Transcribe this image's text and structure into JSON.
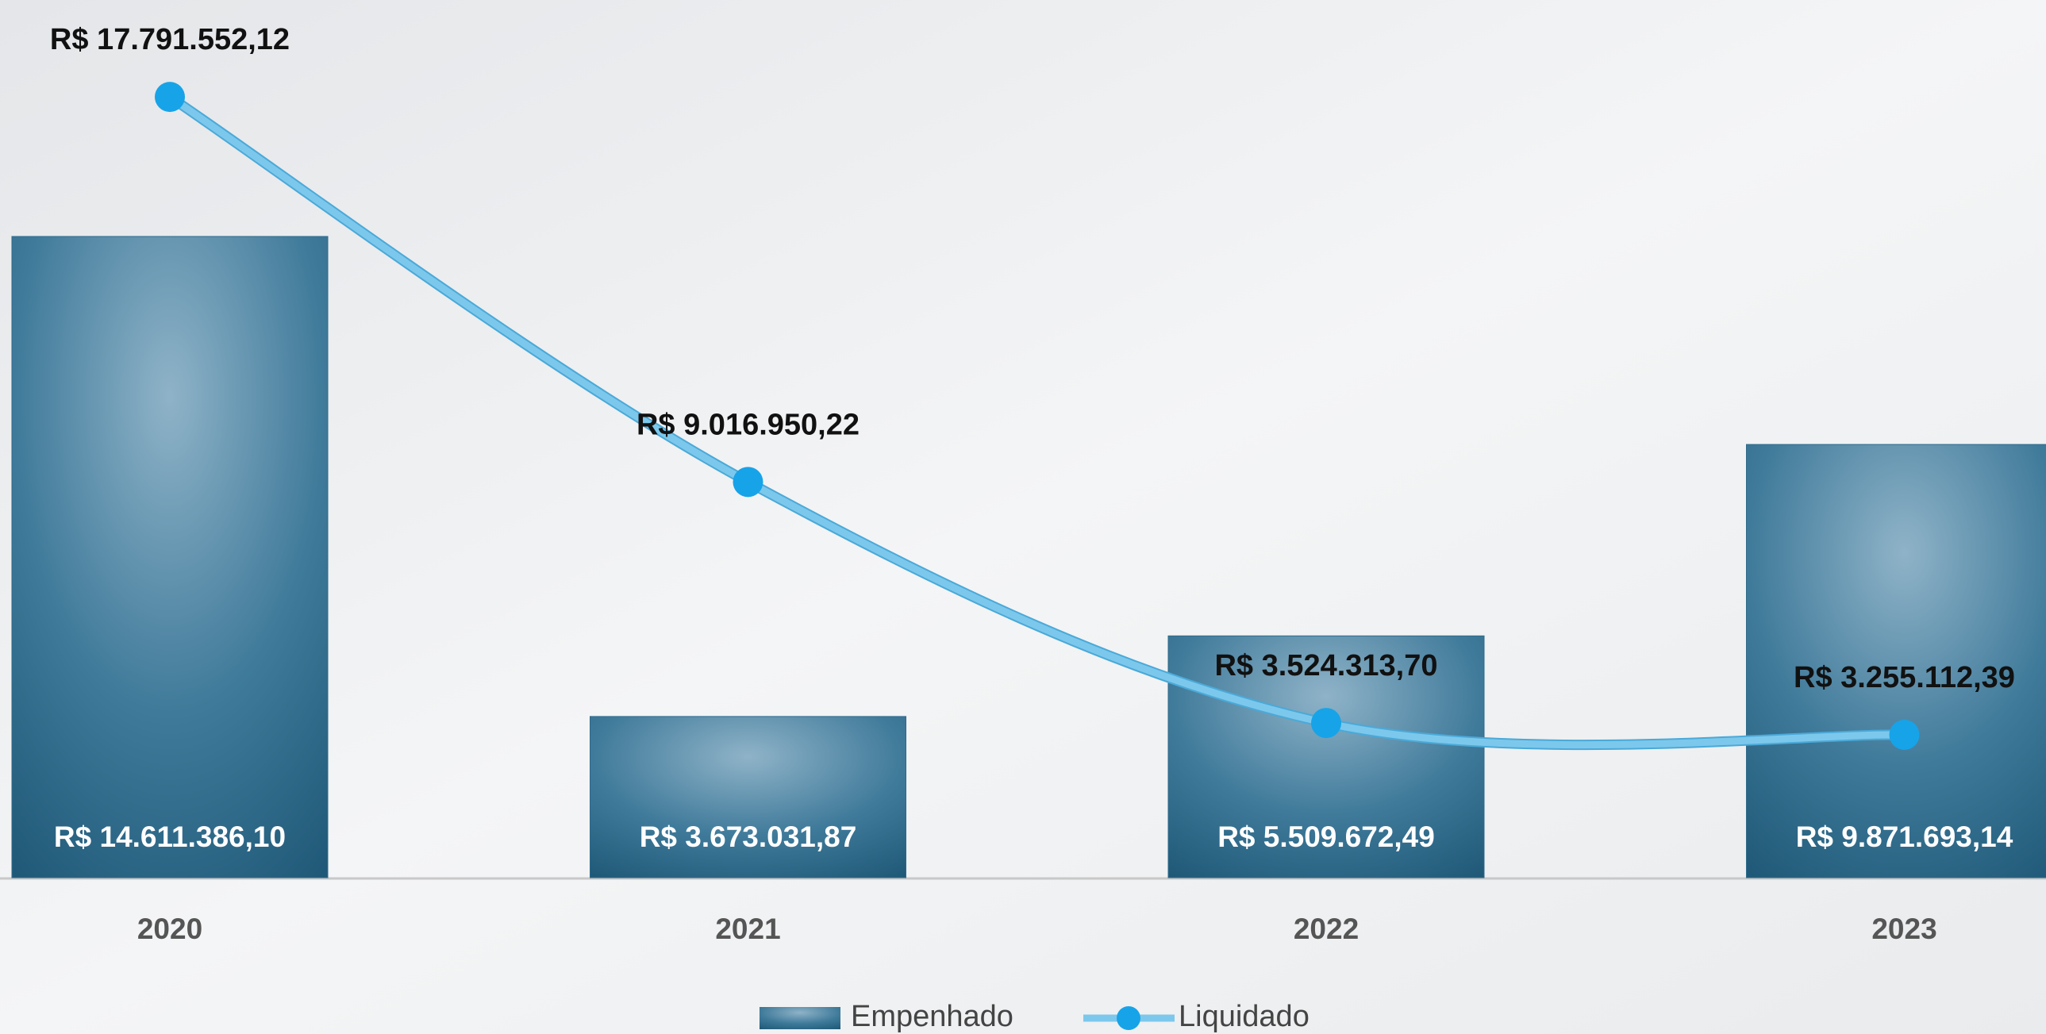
{
  "chart_data": {
    "type": "bar_line",
    "categories": [
      "2020",
      "2021",
      "2022",
      "2023"
    ],
    "series": [
      {
        "name": "Empenhado",
        "type": "bar",
        "color": "#2e6a8c",
        "values": [
          14611386.1,
          3673031.87,
          5509672.49,
          9871693.14
        ],
        "value_labels": [
          "R$ 14.611.386,10",
          "R$ 3.673.031,87",
          "R$ 5.509.672,49",
          "R$ 9.871.693,14"
        ]
      },
      {
        "name": "Liquidado",
        "type": "line",
        "color": "#7cc8ec",
        "marker_color": "#17a3e8",
        "values": [
          17791552.12,
          9016950.22,
          3524313.7,
          3255112.39
        ],
        "value_labels": [
          "R$ 17.791.552,12",
          "R$ 9.016.950,22",
          "R$ 3.524.313,70",
          "R$ 3.255.112,39"
        ]
      }
    ],
    "ylim": [
      0,
      20000000
    ],
    "legend": "bottom"
  }
}
